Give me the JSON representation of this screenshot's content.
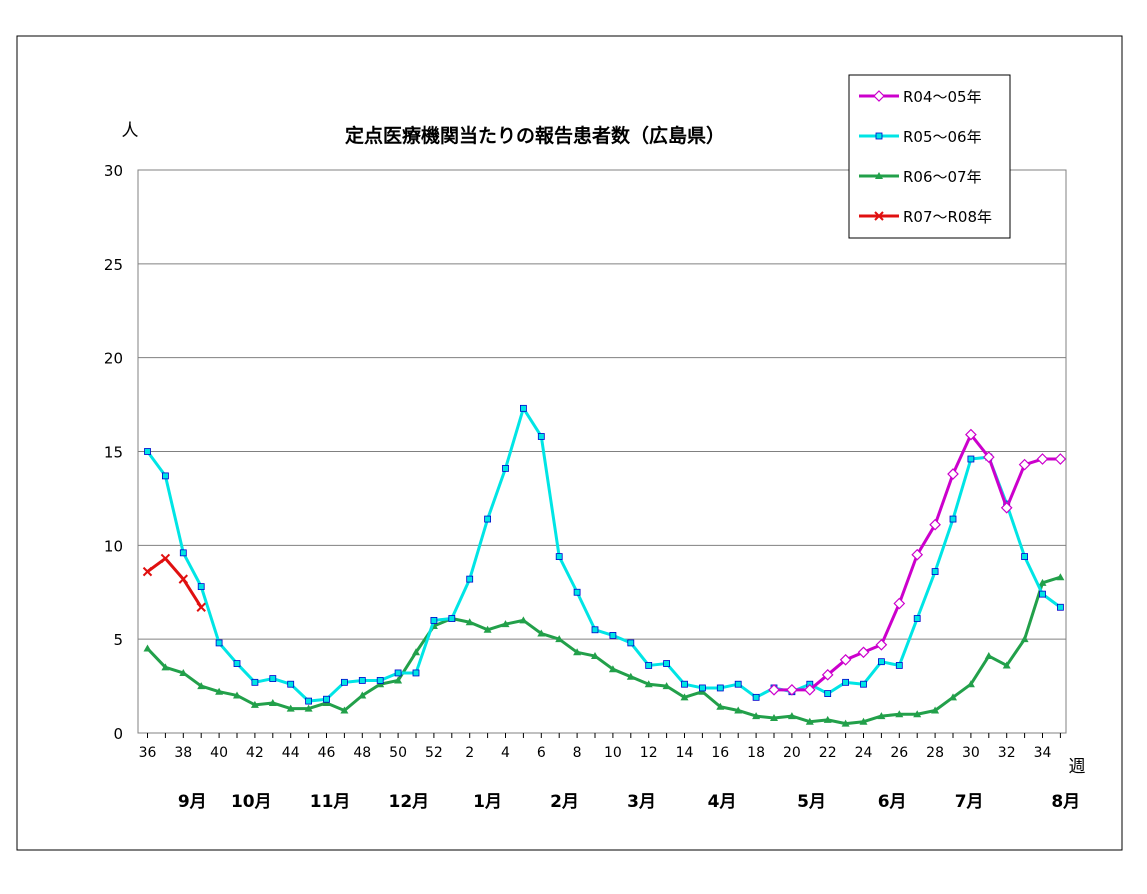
{
  "chart_data": {
    "type": "line",
    "title": "定点医療機関当たりの報告患者数（広島県）",
    "ylabel": "人",
    "xlabel": "週",
    "ylim": [
      0,
      30
    ],
    "yticks": [
      0,
      5,
      10,
      15,
      20,
      25,
      30
    ],
    "grid": true,
    "legend_position": "top-right",
    "x_weeks": [
      36,
      37,
      38,
      39,
      40,
      41,
      42,
      43,
      44,
      45,
      46,
      47,
      48,
      49,
      50,
      51,
      52,
      1,
      2,
      3,
      4,
      5,
      6,
      7,
      8,
      9,
      10,
      11,
      12,
      13,
      14,
      15,
      16,
      17,
      18,
      19,
      20,
      21,
      22,
      23,
      24,
      25,
      26,
      27,
      28,
      29,
      30,
      31,
      32,
      33,
      34,
      35
    ],
    "xtick_labels": [
      "36",
      "38",
      "40",
      "42",
      "44",
      "46",
      "48",
      "50",
      "52",
      "2",
      "4",
      "6",
      "8",
      "10",
      "12",
      "14",
      "16",
      "18",
      "20",
      "22",
      "24",
      "26",
      "28",
      "30",
      "32",
      "34"
    ],
    "month_labels": [
      "9月",
      "10月",
      "11月",
      "12月",
      "1月",
      "2月",
      "3月",
      "4月",
      "5月",
      "6月",
      "7月",
      "8月"
    ],
    "series": [
      {
        "name": "R04～05年",
        "color": "#cc00cc",
        "marker": "diamond-open",
        "values": [
          null,
          null,
          null,
          null,
          null,
          null,
          null,
          null,
          null,
          null,
          null,
          null,
          null,
          null,
          null,
          null,
          null,
          null,
          null,
          null,
          null,
          null,
          null,
          null,
          null,
          null,
          null,
          null,
          null,
          null,
          null,
          null,
          null,
          null,
          null,
          2.3,
          2.3,
          2.3,
          3.1,
          3.9,
          4.3,
          4.7,
          6.9,
          9.5,
          11.1,
          13.8,
          15.9,
          14.7,
          12.0,
          14.3,
          14.6,
          14.6
        ]
      },
      {
        "name": "R05～06年",
        "color": "#00e5e5",
        "marker": "square",
        "values": [
          15.0,
          13.7,
          9.6,
          7.8,
          4.8,
          3.7,
          2.7,
          2.9,
          2.6,
          1.7,
          1.8,
          2.7,
          2.8,
          2.8,
          3.2,
          3.2,
          6.0,
          6.1,
          8.2,
          11.4,
          14.1,
          17.3,
          15.8,
          9.4,
          7.5,
          5.5,
          5.2,
          4.8,
          3.6,
          3.7,
          2.6,
          2.4,
          2.4,
          2.6,
          1.9,
          2.4,
          2.2,
          2.6,
          2.1,
          2.7,
          2.6,
          3.8,
          3.6,
          6.1,
          8.6,
          11.4,
          14.6,
          14.7,
          12.2,
          9.4,
          7.4,
          6.7
        ]
      },
      {
        "name": "R06～07年",
        "color": "#22a04a",
        "marker": "triangle",
        "values": [
          4.5,
          3.5,
          3.2,
          2.5,
          2.2,
          2.0,
          1.5,
          1.6,
          1.3,
          1.3,
          1.6,
          1.2,
          2.0,
          2.6,
          2.8,
          4.3,
          5.7,
          6.1,
          5.9,
          5.5,
          5.8,
          6.0,
          5.3,
          5.0,
          4.3,
          4.1,
          3.4,
          3.0,
          2.6,
          2.5,
          1.9,
          2.2,
          1.4,
          1.2,
          0.9,
          0.8,
          0.9,
          0.6,
          0.7,
          0.5,
          0.6,
          0.9,
          1.0,
          1.0,
          1.2,
          1.9,
          2.6,
          4.1,
          3.6,
          5.0,
          8.0,
          8.3
        ]
      },
      {
        "name": "R07～R08年",
        "color": "#e01010",
        "marker": "x",
        "values": [
          8.6,
          9.3,
          8.2,
          6.7,
          null,
          null,
          null,
          null,
          null,
          null,
          null,
          null,
          null,
          null,
          null,
          null,
          null,
          null,
          null,
          null,
          null,
          null,
          null,
          null,
          null,
          null,
          null,
          null,
          null,
          null,
          null,
          null,
          null,
          null,
          null,
          null,
          null,
          null,
          null,
          null,
          null,
          null,
          null,
          null,
          null,
          null,
          null,
          null,
          null,
          null,
          null,
          null
        ]
      }
    ]
  }
}
